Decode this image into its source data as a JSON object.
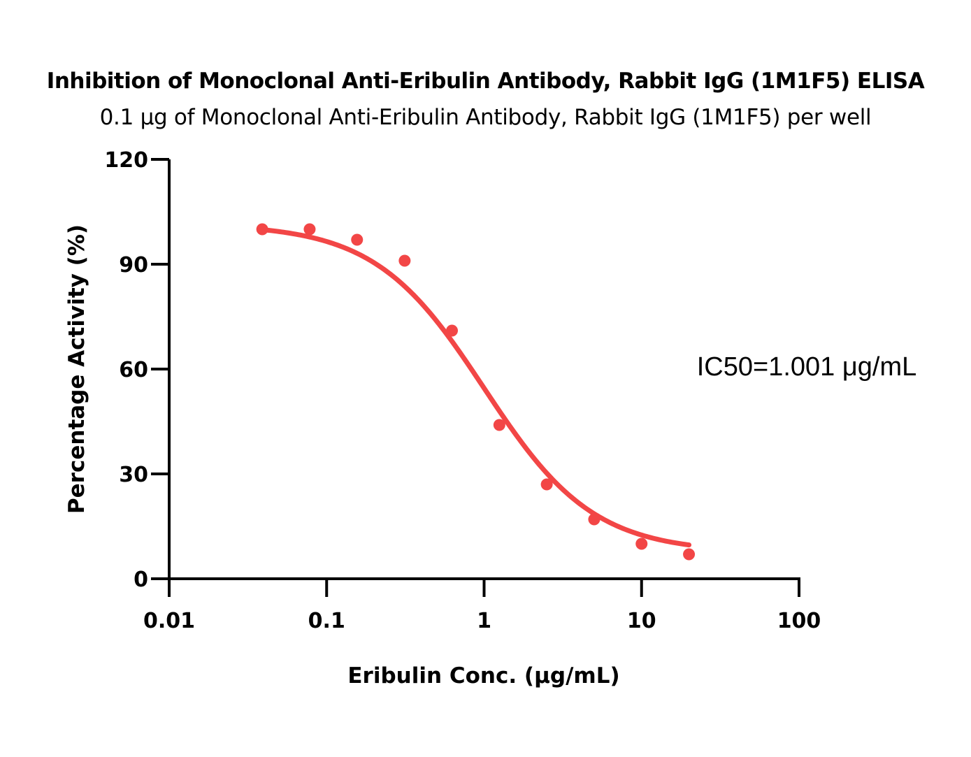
{
  "chart_data": {
    "type": "scatter",
    "title": "Inhibition of Monoclonal Anti-Eribulin Antibody, Rabbit IgG (1M1F5) ELISA",
    "subtitle": "0.1 μg of Monoclonal Anti-Eribulin Antibody, Rabbit IgG (1M1F5) per well",
    "xlabel": "Eribulin Conc. (μg/mL)",
    "ylabel": "Percentage Activity (%)",
    "xscale": "log",
    "xlim": [
      0.01,
      100
    ],
    "ylim": [
      0,
      120
    ],
    "x_ticks": [
      0.01,
      0.1,
      1,
      10,
      100
    ],
    "x_tick_labels": [
      "0.01",
      "0.1",
      "1",
      "10",
      "100"
    ],
    "y_ticks": [
      0,
      30,
      60,
      90,
      120
    ],
    "y_tick_labels": [
      "0",
      "30",
      "60",
      "90",
      "120"
    ],
    "grid": false,
    "color": "#f24646",
    "annotation": "IC50=1.001 μg/mL",
    "series": [
      {
        "x": [
          0.039,
          0.078,
          0.156,
          0.313,
          0.625,
          1.25,
          2.5,
          5,
          10,
          20
        ],
        "y": [
          100,
          100,
          97,
          91,
          71,
          44,
          27,
          17,
          10,
          7
        ]
      }
    ],
    "fit_curve": {
      "top": 101.5,
      "bottom": 7.5,
      "ic50": 1.001,
      "hill": 1.25,
      "x_range": [
        0.039,
        20
      ]
    }
  }
}
